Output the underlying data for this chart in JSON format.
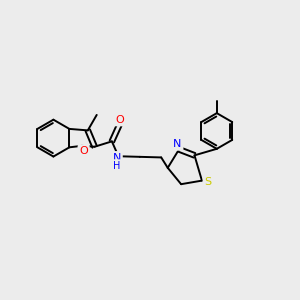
{
  "background_color": "#ececec",
  "bond_color": "#000000",
  "atom_colors": {
    "O": "#ff0000",
    "N": "#0000ff",
    "S": "#cccc00",
    "C": "#000000",
    "H": "#555555"
  },
  "figsize": [
    3.0,
    3.0
  ],
  "dpi": 100
}
